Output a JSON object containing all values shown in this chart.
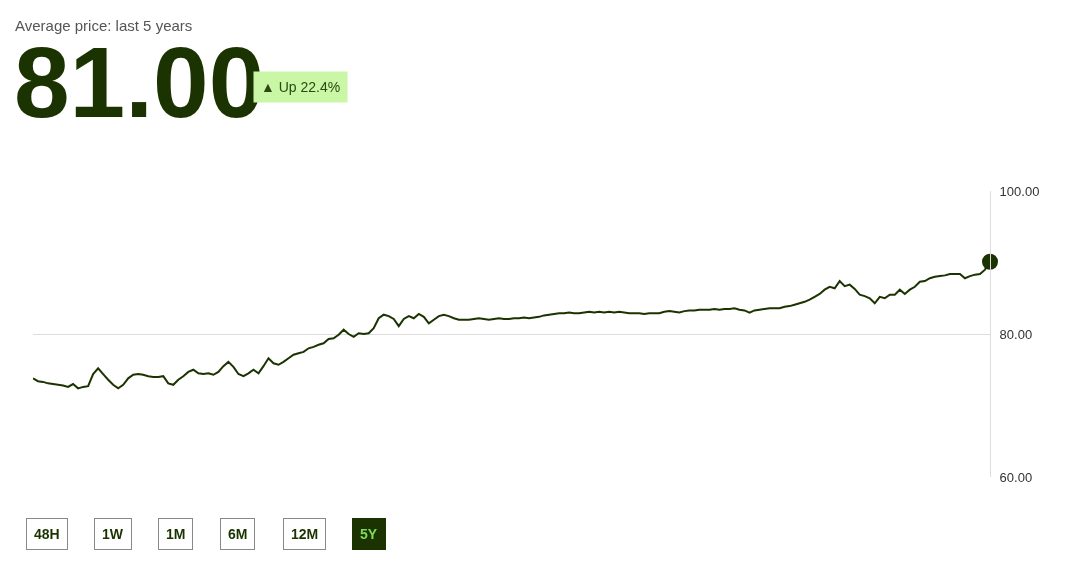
{
  "chart_data": {
    "type": "line",
    "title": "Average price: last 5 years",
    "annotations": [
      "81.00",
      "▲ Up 22.4%",
      "48H",
      "1W",
      "1M",
      "6M",
      "12M",
      "5Y"
    ],
    "categories": [
      null,
      null,
      null,
      null,
      null,
      null,
      null,
      null,
      null,
      null,
      null,
      null,
      null,
      null,
      null,
      null,
      null,
      null,
      null,
      null,
      null,
      null,
      null,
      null,
      null,
      null,
      null,
      null,
      null,
      null,
      null,
      null,
      null,
      null,
      null,
      null,
      null,
      null,
      null,
      null,
      null,
      null,
      null,
      null,
      null,
      null,
      null,
      null,
      null,
      null,
      null,
      null,
      null,
      null,
      null,
      null,
      null,
      null,
      null,
      null,
      null,
      null,
      null,
      null,
      null,
      null,
      null,
      null,
      null,
      null,
      null,
      null,
      null,
      null,
      null,
      null,
      null,
      null,
      null,
      null,
      null,
      null,
      null,
      null,
      null,
      null,
      null,
      null,
      null,
      null,
      null,
      null,
      null,
      null,
      null,
      null,
      null,
      null,
      null,
      null,
      null,
      null,
      null,
      null,
      null,
      null,
      null,
      null,
      null,
      null,
      null,
      null,
      null,
      null,
      null,
      null,
      null,
      null,
      null,
      null,
      null,
      null,
      null,
      null,
      null,
      null,
      null,
      null,
      null,
      null,
      null,
      null,
      null,
      null,
      null,
      null,
      null,
      null,
      null,
      null,
      null,
      null,
      null,
      null,
      null,
      null,
      null,
      null,
      null,
      null,
      null,
      null,
      null,
      null,
      null,
      null,
      null,
      null,
      null,
      null,
      null,
      null,
      null,
      null,
      null,
      null,
      null,
      null,
      null,
      null,
      null,
      null,
      null,
      null,
      null,
      null,
      null,
      null,
      null,
      null,
      null,
      null,
      null,
      null,
      null,
      null,
      null,
      null,
      null,
      null,
      null,
      null
    ],
    "series": [
      {
        "color": "#1a3300",
        "marker": "none",
        "values": [
          73.8,
          73.4,
          73.3,
          73.1,
          73.0,
          72.9,
          72.8,
          72.6,
          73.0,
          72.4,
          72.6,
          72.7,
          74.4,
          75.2,
          74.4,
          73.6,
          72.9,
          72.4,
          72.9,
          73.8,
          74.3,
          74.4,
          74.3,
          74.1,
          74.0,
          74.0,
          74.1,
          73.1,
          72.9,
          73.6,
          74.1,
          74.7,
          75.0,
          74.5,
          74.4,
          74.5,
          74.3,
          74.7,
          75.5,
          76.1,
          75.4,
          74.4,
          74.1,
          74.5,
          75.0,
          74.5,
          75.5,
          76.6,
          75.9,
          75.7,
          76.1,
          76.6,
          77.1,
          77.3,
          77.5,
          78.0,
          78.2,
          78.5,
          78.7,
          79.3,
          79.4,
          79.9,
          80.6,
          80.0,
          79.6,
          80.1,
          80.0,
          80.1,
          80.8,
          82.2,
          82.7,
          82.5,
          82.1,
          81.1,
          82.1,
          82.5,
          82.2,
          82.8,
          82.4,
          81.5,
          82.0,
          82.5,
          82.7,
          82.5,
          82.2,
          82.0,
          82.0,
          82.0,
          82.1,
          82.2,
          82.1,
          82.0,
          82.1,
          82.2,
          82.1,
          82.1,
          82.2,
          82.2,
          82.3,
          82.2,
          82.3,
          82.4,
          82.6,
          82.7,
          82.8,
          82.9,
          82.9,
          83.0,
          82.9,
          82.9,
          83.0,
          83.1,
          83.0,
          83.1,
          83.0,
          83.1,
          83.0,
          83.1,
          83.0,
          82.9,
          82.9,
          82.9,
          82.8,
          82.9,
          82.9,
          82.9,
          83.1,
          83.2,
          83.1,
          83.0,
          83.2,
          83.3,
          83.3,
          83.4,
          83.4,
          83.4,
          83.5,
          83.4,
          83.5,
          83.5,
          83.6,
          83.4,
          83.3,
          83.0,
          83.3,
          83.4,
          83.5,
          83.6,
          83.6,
          83.6,
          83.8,
          83.9,
          84.1,
          84.3,
          84.5,
          84.8,
          85.2,
          85.6,
          86.2,
          86.6,
          86.4,
          87.4,
          86.7,
          86.9,
          86.3,
          85.5,
          85.3,
          85.0,
          84.3,
          85.2,
          85.0,
          85.5,
          85.5,
          86.2,
          85.6,
          86.2,
          86.6,
          87.3,
          87.4,
          87.8,
          88.0,
          88.1,
          88.2,
          88.4,
          88.4,
          88.4,
          87.8,
          88.1,
          88.3,
          88.4,
          89.0,
          90.1
        ]
      },
      {
        "type": "scatter",
        "color": "#1a3300",
        "marker": "circle",
        "values": [
          null,
          null,
          null,
          null,
          null,
          null,
          null,
          null,
          null,
          null,
          null,
          null,
          null,
          null,
          null,
          null,
          null,
          null,
          null,
          null,
          null,
          null,
          null,
          null,
          null,
          null,
          null,
          null,
          null,
          null,
          null,
          null,
          null,
          null,
          null,
          null,
          null,
          null,
          null,
          null,
          null,
          null,
          null,
          null,
          null,
          null,
          null,
          null,
          null,
          null,
          null,
          null,
          null,
          null,
          null,
          null,
          null,
          null,
          null,
          null,
          null,
          null,
          null,
          null,
          null,
          null,
          null,
          null,
          null,
          null,
          null,
          null,
          null,
          null,
          null,
          null,
          null,
          null,
          null,
          null,
          null,
          null,
          null,
          null,
          null,
          null,
          null,
          null,
          null,
          null,
          null,
          null,
          null,
          null,
          null,
          null,
          null,
          null,
          null,
          null,
          null,
          null,
          null,
          null,
          null,
          null,
          null,
          null,
          null,
          null,
          null,
          null,
          null,
          null,
          null,
          null,
          null,
          null,
          null,
          null,
          null,
          null,
          null,
          null,
          null,
          null,
          null,
          null,
          null,
          null,
          null,
          null,
          null,
          null,
          null,
          null,
          null,
          null,
          null,
          null,
          null,
          null,
          null,
          null,
          null,
          null,
          null,
          null,
          null,
          null,
          null,
          null,
          null,
          null,
          null,
          null,
          null,
          null,
          null,
          null,
          null,
          null,
          null,
          null,
          null,
          null,
          null,
          null,
          null,
          null,
          null,
          null,
          null,
          null,
          null,
          null,
          null,
          null,
          null,
          null,
          null,
          null,
          null,
          null,
          null,
          null,
          null,
          null,
          null,
          null,
          null,
          90.1
        ]
      }
    ],
    "ylim": [
      60,
      100
    ],
    "yticks": [
      {
        "value": 60,
        "label": "60.00"
      },
      {
        "value": 80,
        "label": "80.00"
      },
      {
        "value": 100,
        "label": "100.00"
      }
    ],
    "grid": "y",
    "tick_labels": "y"
  }
}
